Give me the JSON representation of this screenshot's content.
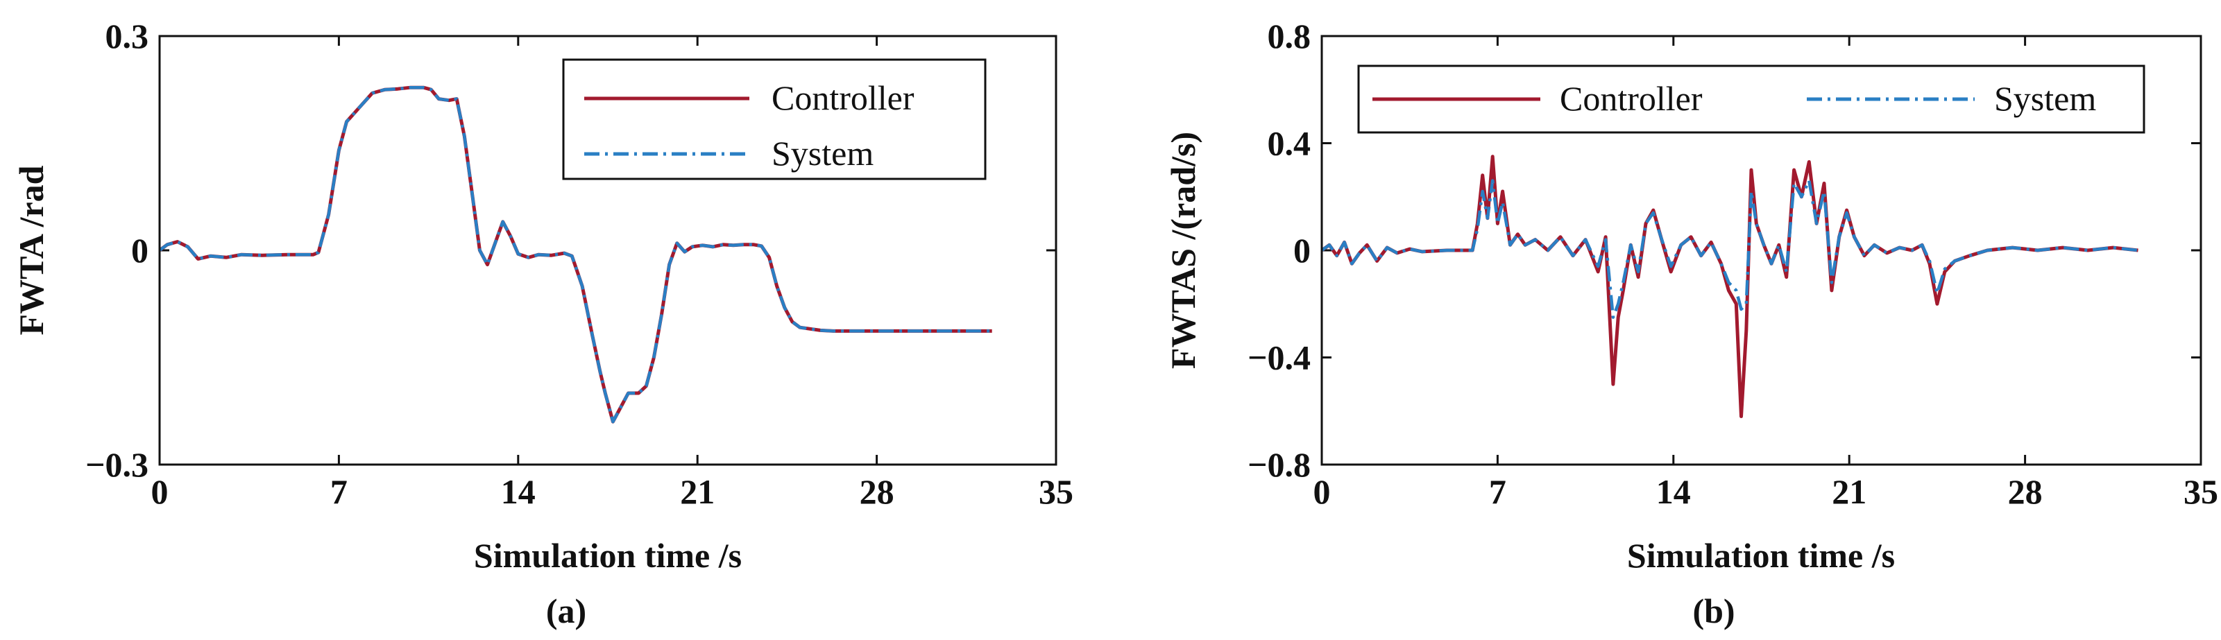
{
  "chart_data": [
    {
      "type": "line",
      "panel_label": "(a)",
      "xlabel": "Simulation time /s",
      "ylabel": "FWTA /rad",
      "xlim": [
        0,
        35
      ],
      "ylim": [
        -0.3,
        0.3
      ],
      "xticks": [
        0,
        7,
        14,
        21,
        28,
        35
      ],
      "yticks": [
        -0.3,
        0,
        0.3
      ],
      "ytick_labels": [
        "−0.3",
        "0",
        "0.3"
      ],
      "grid": false,
      "legend": "top-right",
      "series": [
        {
          "name": "Controller",
          "style": "solid",
          "color": "#a21a2e",
          "x": [
            0,
            0.3,
            0.7,
            1.1,
            1.5,
            2.0,
            2.6,
            3.2,
            4.0,
            5.0,
            6.0,
            6.2,
            6.6,
            7.0,
            7.3,
            7.8,
            8.3,
            8.8,
            9.3,
            9.8,
            10.3,
            10.6,
            10.9,
            11.3,
            11.6,
            11.9,
            12.2,
            12.5,
            12.8,
            13.1,
            13.4,
            13.7,
            14.0,
            14.4,
            14.8,
            15.3,
            15.8,
            16.1,
            16.5,
            16.9,
            17.2,
            17.4,
            17.7,
            18.0,
            18.3,
            18.7,
            19.0,
            19.3,
            19.6,
            19.9,
            20.2,
            20.5,
            20.8,
            21.2,
            21.6,
            22.0,
            22.4,
            22.8,
            23.2,
            23.5,
            23.8,
            24.1,
            24.4,
            24.7,
            25.0,
            25.4,
            25.8,
            26.3,
            27.0,
            28.0,
            29.0,
            30.0,
            31.0,
            32.0,
            32.5
          ],
          "y": [
            0.0,
            0.008,
            0.012,
            0.005,
            -0.012,
            -0.008,
            -0.01,
            -0.006,
            -0.007,
            -0.006,
            -0.006,
            -0.003,
            0.05,
            0.14,
            0.18,
            0.2,
            0.22,
            0.225,
            0.226,
            0.228,
            0.228,
            0.225,
            0.212,
            0.21,
            0.212,
            0.16,
            0.08,
            0.0,
            -0.02,
            0.01,
            0.04,
            0.02,
            -0.005,
            -0.01,
            -0.006,
            -0.007,
            -0.004,
            -0.008,
            -0.05,
            -0.12,
            -0.17,
            -0.2,
            -0.24,
            -0.22,
            -0.2,
            -0.2,
            -0.19,
            -0.15,
            -0.09,
            -0.02,
            0.01,
            -0.002,
            0.005,
            0.007,
            0.005,
            0.008,
            0.007,
            0.008,
            0.008,
            0.006,
            -0.01,
            -0.05,
            -0.08,
            -0.1,
            -0.108,
            -0.11,
            -0.112,
            -0.113,
            -0.113,
            -0.113,
            -0.113,
            -0.113,
            -0.113,
            -0.113,
            -0.113
          ]
        },
        {
          "name": "System",
          "style": "dashdot",
          "color": "#2a7fc4",
          "x": [
            0,
            0.3,
            0.7,
            1.1,
            1.5,
            2.0,
            2.6,
            3.2,
            4.0,
            5.0,
            6.0,
            6.2,
            6.6,
            7.0,
            7.3,
            7.8,
            8.3,
            8.8,
            9.3,
            9.8,
            10.3,
            10.6,
            10.9,
            11.3,
            11.6,
            11.9,
            12.2,
            12.5,
            12.8,
            13.1,
            13.4,
            13.7,
            14.0,
            14.4,
            14.8,
            15.3,
            15.8,
            16.1,
            16.5,
            16.9,
            17.2,
            17.4,
            17.7,
            18.0,
            18.3,
            18.7,
            19.0,
            19.3,
            19.6,
            19.9,
            20.2,
            20.5,
            20.8,
            21.2,
            21.6,
            22.0,
            22.4,
            22.8,
            23.2,
            23.5,
            23.8,
            24.1,
            24.4,
            24.7,
            25.0,
            25.4,
            25.8,
            26.3,
            27.0,
            28.0,
            29.0,
            30.0,
            31.0,
            32.0,
            32.5
          ],
          "y": [
            0.0,
            0.008,
            0.012,
            0.005,
            -0.012,
            -0.008,
            -0.01,
            -0.006,
            -0.007,
            -0.006,
            -0.006,
            -0.003,
            0.05,
            0.14,
            0.18,
            0.2,
            0.22,
            0.225,
            0.226,
            0.228,
            0.228,
            0.225,
            0.212,
            0.21,
            0.212,
            0.16,
            0.08,
            0.0,
            -0.02,
            0.01,
            0.04,
            0.02,
            -0.005,
            -0.01,
            -0.006,
            -0.007,
            -0.004,
            -0.008,
            -0.05,
            -0.12,
            -0.17,
            -0.2,
            -0.24,
            -0.22,
            -0.2,
            -0.2,
            -0.19,
            -0.15,
            -0.09,
            -0.02,
            0.01,
            -0.002,
            0.005,
            0.007,
            0.005,
            0.008,
            0.007,
            0.008,
            0.008,
            0.006,
            -0.01,
            -0.05,
            -0.08,
            -0.1,
            -0.108,
            -0.11,
            -0.112,
            -0.113,
            -0.113,
            -0.113,
            -0.113,
            -0.113,
            -0.113,
            -0.113,
            -0.113
          ]
        }
      ]
    },
    {
      "type": "line",
      "panel_label": "(b)",
      "xlabel": "Simulation time /s",
      "ylabel": "FWTAS /(rad/s)",
      "xlim": [
        0,
        35
      ],
      "ylim": [
        -0.8,
        0.8
      ],
      "xticks": [
        0,
        7,
        14,
        21,
        28,
        35
      ],
      "yticks": [
        -0.8,
        -0.4,
        0,
        0.4,
        0.8
      ],
      "ytick_labels": [
        "−0.8",
        "−0.4",
        "0",
        "0.4",
        "0.8"
      ],
      "grid": false,
      "legend": "top",
      "series": [
        {
          "name": "Controller",
          "style": "solid",
          "color": "#a21a2e",
          "x": [
            0,
            0.3,
            0.6,
            0.9,
            1.2,
            1.5,
            1.8,
            2.2,
            2.6,
            3.0,
            3.5,
            4.0,
            5.0,
            6.0,
            6.2,
            6.4,
            6.6,
            6.8,
            7.0,
            7.2,
            7.5,
            7.8,
            8.1,
            8.5,
            9.0,
            9.5,
            10.0,
            10.5,
            11.0,
            11.3,
            11.6,
            11.8,
            12.0,
            12.3,
            12.6,
            12.9,
            13.2,
            13.5,
            13.9,
            14.3,
            14.7,
            15.1,
            15.5,
            15.9,
            16.2,
            16.5,
            16.7,
            16.9,
            17.1,
            17.3,
            17.6,
            17.9,
            18.2,
            18.5,
            18.8,
            19.1,
            19.4,
            19.7,
            20.0,
            20.3,
            20.6,
            20.9,
            21.2,
            21.6,
            22.0,
            22.5,
            23.0,
            23.5,
            23.9,
            24.2,
            24.5,
            24.8,
            25.2,
            25.8,
            26.5,
            27.5,
            28.5,
            29.5,
            30.5,
            31.5,
            32.5
          ],
          "y": [
            0.0,
            0.02,
            -0.02,
            0.03,
            -0.05,
            -0.01,
            0.02,
            -0.04,
            0.01,
            -0.01,
            0.005,
            -0.005,
            0.0,
            0.0,
            0.1,
            0.28,
            0.12,
            0.35,
            0.1,
            0.22,
            0.02,
            0.06,
            0.02,
            0.04,
            0.0,
            0.05,
            -0.02,
            0.04,
            -0.08,
            0.05,
            -0.5,
            -0.25,
            -0.15,
            0.02,
            -0.1,
            0.1,
            0.15,
            0.05,
            -0.08,
            0.02,
            0.05,
            -0.02,
            0.03,
            -0.05,
            -0.15,
            -0.2,
            -0.62,
            -0.3,
            0.3,
            0.1,
            0.02,
            -0.05,
            0.02,
            -0.1,
            0.3,
            0.2,
            0.33,
            0.1,
            0.25,
            -0.15,
            0.05,
            0.15,
            0.05,
            -0.02,
            0.02,
            -0.01,
            0.01,
            0.0,
            0.02,
            -0.05,
            -0.2,
            -0.08,
            -0.04,
            -0.02,
            0.0,
            0.01,
            0.0,
            0.01,
            0.0,
            0.01,
            0.0
          ]
        },
        {
          "name": "System",
          "style": "dashdot",
          "color": "#2a7fc4",
          "x": [
            0,
            0.3,
            0.6,
            0.9,
            1.2,
            1.5,
            1.8,
            2.2,
            2.6,
            3.0,
            3.5,
            4.0,
            5.0,
            6.0,
            6.2,
            6.4,
            6.6,
            6.8,
            7.0,
            7.2,
            7.5,
            7.8,
            8.1,
            8.5,
            9.0,
            9.5,
            10.0,
            10.5,
            11.0,
            11.3,
            11.6,
            11.8,
            12.0,
            12.3,
            12.6,
            12.9,
            13.2,
            13.5,
            13.9,
            14.3,
            14.7,
            15.1,
            15.5,
            15.9,
            16.2,
            16.5,
            16.7,
            16.9,
            17.1,
            17.3,
            17.6,
            17.9,
            18.2,
            18.5,
            18.8,
            19.1,
            19.4,
            19.7,
            20.0,
            20.3,
            20.6,
            20.9,
            21.2,
            21.6,
            22.0,
            22.5,
            23.0,
            23.5,
            23.9,
            24.2,
            24.5,
            24.8,
            25.2,
            25.8,
            26.5,
            27.5,
            28.5,
            29.5,
            30.5,
            31.5,
            32.5
          ],
          "y": [
            0.0,
            0.02,
            -0.02,
            0.03,
            -0.05,
            -0.01,
            0.02,
            -0.04,
            0.01,
            -0.01,
            0.005,
            -0.005,
            0.0,
            0.0,
            0.08,
            0.22,
            0.12,
            0.26,
            0.1,
            0.18,
            0.02,
            0.06,
            0.02,
            0.04,
            0.0,
            0.05,
            -0.02,
            0.04,
            -0.06,
            0.04,
            -0.25,
            -0.2,
            -0.12,
            0.02,
            -0.08,
            0.1,
            0.14,
            0.05,
            -0.06,
            0.02,
            0.05,
            -0.02,
            0.03,
            -0.05,
            -0.12,
            -0.15,
            -0.22,
            -0.2,
            0.22,
            0.1,
            0.02,
            -0.05,
            0.02,
            -0.08,
            0.25,
            0.2,
            0.26,
            0.1,
            0.22,
            -0.12,
            0.05,
            0.14,
            0.05,
            -0.02,
            0.02,
            -0.01,
            0.01,
            0.0,
            0.02,
            -0.04,
            -0.16,
            -0.07,
            -0.04,
            -0.02,
            0.0,
            0.01,
            0.0,
            0.01,
            0.0,
            0.01,
            0.0
          ]
        }
      ]
    }
  ]
}
